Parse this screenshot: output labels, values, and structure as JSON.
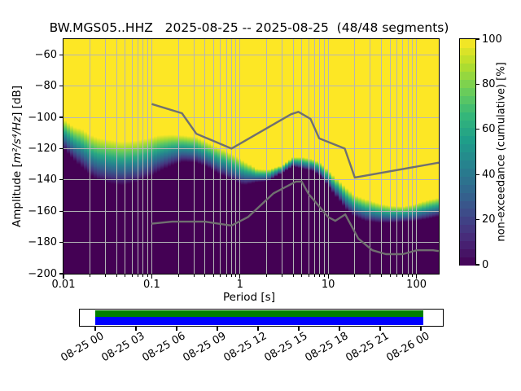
{
  "title": "BW.MGS05..HHZ   2025-08-25 -- 2025-08-25  (48/48 segments)",
  "station": "BW.MGS05..HHZ",
  "date_range": "2025-08-25 -- 2025-08-25",
  "segments": "48/48 segments",
  "axes": {
    "xlabel": "Period [s]",
    "ylabel_prefix": "Amplitude [",
    "ylabel_math": "m²/s⁴/Hz",
    "ylabel_suffix": "] [dB]",
    "xtick_values": [
      0.01,
      0.1,
      1,
      10,
      100
    ],
    "xtick_labels": [
      "0.01",
      "0.1",
      "1",
      "10",
      "100"
    ],
    "ytick_values": [
      -60,
      -80,
      -100,
      -120,
      -140,
      -160,
      -180,
      -200
    ],
    "ytick_labels": [
      "−60",
      "−80",
      "−100",
      "−120",
      "−140",
      "−160",
      "−180",
      "−200"
    ]
  },
  "colorbar": {
    "label": "non-exceedance (cumulative) [%]",
    "tick_values": [
      0,
      20,
      40,
      60,
      80,
      100
    ],
    "tick_labels": [
      "0",
      "20",
      "40",
      "60",
      "80",
      "100"
    ],
    "steps": 28
  },
  "timeline": {
    "tick_labels": [
      "08-25 00",
      "08-25 03",
      "08-25 06",
      "08-25 09",
      "08-25 12",
      "08-25 15",
      "08-25 18",
      "08-25 21",
      "08-26 00"
    ],
    "coverage_top_color": "#008000",
    "coverage_bottom_color": "#0000ff"
  },
  "colors": {
    "background": "#ffffff",
    "gridline": "#b5b5b8",
    "noise_model_line": "#707070",
    "spine": "#000000",
    "histogram_low": "#440154",
    "histogram_high": "#fde725",
    "viridis_stops": [
      "#440154",
      "#482878",
      "#3e4989",
      "#31688e",
      "#26828e",
      "#1f9e89",
      "#35b779",
      "#6ece58",
      "#b5de2b",
      "#fde725"
    ]
  },
  "chart_data": {
    "type": "heatmap",
    "title": "BW.MGS05..HHZ   2025-08-25 -- 2025-08-25  (48/48 segments)",
    "xlabel": "Period [s]",
    "ylabel": "Amplitude [m²/s⁴/Hz] [dB]",
    "colorbar_label": "non-exceedance (cumulative) [%]",
    "xscale": "log",
    "xlim": [
      0.01,
      179
    ],
    "ylim": [
      -200,
      -50
    ],
    "value_range_percent": [
      0,
      100
    ],
    "grid": true,
    "distribution": {
      "comment": "cumulative PPSD band: above db_max color is 100% (yellow), below db_min it is 0% (dark purple)",
      "periods_s": [
        0.01,
        0.013,
        0.016,
        0.02,
        0.024,
        0.034,
        0.046,
        0.063,
        0.088,
        0.12,
        0.165,
        0.227,
        0.313,
        0.43,
        0.591,
        0.813,
        1.12,
        1.54,
        2.11,
        2.91,
        4.0,
        5.15,
        6.8,
        8.4,
        10.3,
        12.8,
        15.9,
        19.7,
        26.9,
        37.1,
        50.9,
        70.0,
        96.2,
        132,
        178
      ],
      "db_max": [
        -101,
        -106,
        -107.5,
        -111,
        -113,
        -114.5,
        -115.5,
        -115,
        -113.5,
        -111.5,
        -111,
        -111.5,
        -112.5,
        -116,
        -119.5,
        -123.5,
        -128,
        -133,
        -133.5,
        -131,
        -125.5,
        -125.5,
        -127,
        -129.5,
        -134.5,
        -140,
        -145,
        -149.5,
        -152.5,
        -155,
        -156.5,
        -157,
        -155.5,
        -153,
        -151.5
      ],
      "db_min": [
        -120,
        -127,
        -132,
        -137,
        -140,
        -142.5,
        -143.5,
        -142,
        -139,
        -135,
        -131,
        -128.5,
        -129,
        -132,
        -136.5,
        -140.5,
        -143.5,
        -141.5,
        -141,
        -136,
        -131.5,
        -133,
        -134.5,
        -138.5,
        -145,
        -152,
        -159,
        -163.5,
        -166.5,
        -167.5,
        -167.5,
        -167,
        -166.5,
        -165,
        -163.5
      ]
    },
    "noise_models": {
      "nhnm": {
        "name": "Peterson New High Noise Model",
        "periods_s": [
          0.1,
          0.22,
          0.32,
          0.8,
          3.8,
          4.6,
          6.3,
          7.9,
          15.4,
          20.0,
          179.0
        ],
        "db": [
          -91.5,
          -97.4,
          -110.5,
          -120.0,
          -98.0,
          -96.5,
          -101.0,
          -113.5,
          -120.0,
          -138.5,
          -129.0
        ]
      },
      "nlnm": {
        "name": "Peterson New Low Noise Model",
        "periods_s": [
          0.1,
          0.17,
          0.4,
          0.8,
          1.24,
          2.4,
          4.3,
          5.0,
          6.0,
          10.0,
          12.0,
          15.6,
          21.9,
          31.6,
          45.0,
          70.0,
          101.0,
          154.0,
          179.0
        ],
        "db": [
          -168.0,
          -166.7,
          -166.7,
          -169.2,
          -163.7,
          -148.6,
          -141.1,
          -141.1,
          -149.0,
          -163.8,
          -166.2,
          -162.1,
          -177.5,
          -185.0,
          -187.5,
          -187.5,
          -185.0,
          -185.0,
          -185.5
        ]
      }
    }
  }
}
